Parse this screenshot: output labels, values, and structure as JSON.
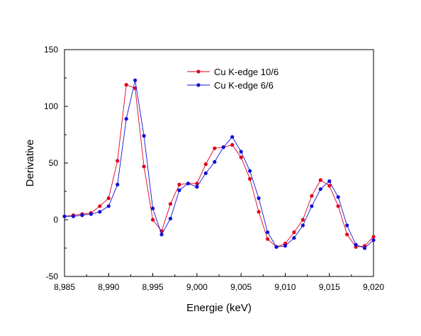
{
  "chart_data": {
    "type": "line",
    "xlabel": "Energie (keV)",
    "ylabel": "Derivative",
    "xlim": [
      8.985,
      9.02
    ],
    "ylim": [
      -50,
      150
    ],
    "xticks": [
      8.985,
      8.99,
      8.995,
      9.0,
      9.005,
      9.01,
      9.015,
      9.02
    ],
    "xtick_labels": [
      "8,985",
      "8,990",
      "8,995",
      "9,000",
      "9,005",
      "9,010",
      "9,015",
      "9,020"
    ],
    "yticks": [
      -50,
      0,
      50,
      100,
      150
    ],
    "ytick_labels": [
      "-50",
      "0",
      "50",
      "100",
      "150"
    ],
    "grid": false,
    "legend_position": "top-center",
    "x": [
      8.985,
      8.986,
      8.987,
      8.988,
      8.989,
      8.99,
      8.991,
      8.992,
      8.993,
      8.994,
      8.995,
      8.996,
      8.997,
      8.998,
      8.999,
      9.0,
      9.001,
      9.002,
      9.003,
      9.004,
      9.005,
      9.006,
      9.007,
      9.008,
      9.009,
      9.01,
      9.011,
      9.012,
      9.013,
      9.014,
      9.015,
      9.016,
      9.017,
      9.018,
      9.019,
      9.02
    ],
    "series": [
      {
        "name": "Cu K-edge 10/6",
        "color": "#e0001b",
        "values": [
          3,
          4,
          5,
          6,
          12,
          19,
          52,
          119,
          116,
          47,
          0,
          -10,
          14,
          31,
          32,
          32,
          49,
          63,
          64,
          66,
          55,
          36,
          7,
          -17,
          -24,
          -21,
          -11,
          0,
          21,
          35,
          30,
          12,
          -13,
          -24,
          -23,
          -15
        ]
      },
      {
        "name": "Cu K-edge 6/6",
        "color": "#1010d8",
        "values": [
          3,
          3,
          4,
          5,
          7,
          12,
          31,
          89,
          123,
          74,
          10,
          -13,
          1,
          26,
          32,
          29,
          41,
          51,
          64,
          73,
          60,
          43,
          19,
          -11,
          -24,
          -23,
          -16,
          -5,
          12,
          27,
          34,
          20,
          -5,
          -22,
          -25,
          -18
        ]
      }
    ]
  }
}
